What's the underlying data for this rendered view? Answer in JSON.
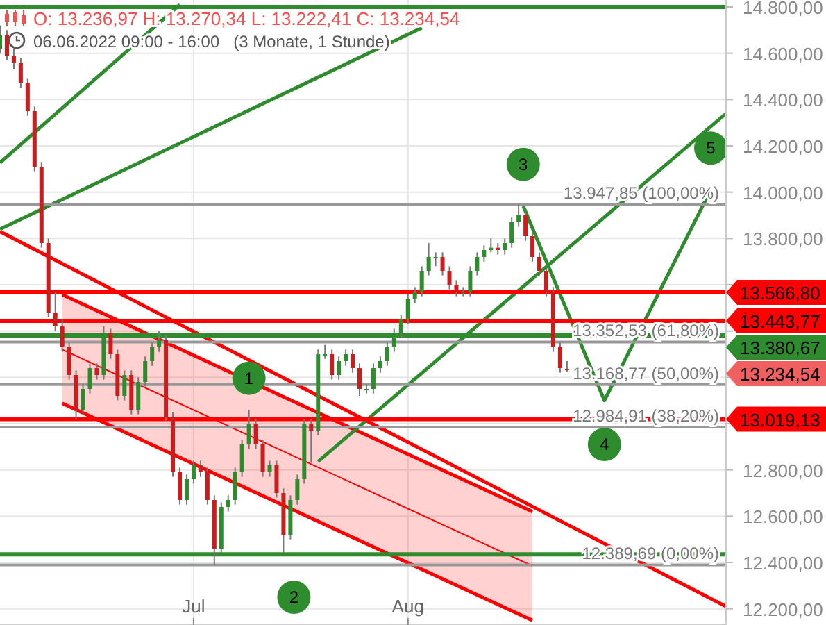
{
  "chart_data": {
    "type": "candlestick",
    "title": "O: 13.236,97  H: 13.270,34  L: 13.222,41  C: 13.234,54",
    "subtitle": "06.06.2022 09:00 - 16:00   (3 Monate, 1 Stunde)",
    "x": [
      "2022-06-03",
      "2022-06-04",
      "2022-06-05",
      "2022-06-06",
      "2022-06-07",
      "2022-06-08",
      "2022-06-09",
      "2022-06-10",
      "2022-06-11",
      "2022-06-12",
      "2022-06-13",
      "2022-06-14",
      "2022-06-15",
      "2022-06-16",
      "2022-06-17",
      "2022-06-18",
      "2022-06-19",
      "2022-06-20",
      "2022-06-21",
      "2022-06-22",
      "2022-06-23",
      "2022-06-24",
      "2022-06-25",
      "2022-06-26",
      "2022-06-27",
      "2022-06-28",
      "2022-06-29",
      "2022-06-30",
      "2022-07-01",
      "2022-07-02",
      "2022-07-03",
      "2022-07-04",
      "2022-07-05",
      "2022-07-06",
      "2022-07-07",
      "2022-07-08",
      "2022-07-09",
      "2022-07-10",
      "2022-07-11",
      "2022-07-12",
      "2022-07-13",
      "2022-07-14",
      "2022-07-15",
      "2022-07-16",
      "2022-07-17",
      "2022-07-18",
      "2022-07-19",
      "2022-07-20",
      "2022-07-21",
      "2022-07-22",
      "2022-07-23",
      "2022-07-24",
      "2022-07-25",
      "2022-07-26",
      "2022-07-27",
      "2022-07-28",
      "2022-07-29",
      "2022-07-30",
      "2022-07-31",
      "2022-08-01",
      "2022-08-02",
      "2022-08-03",
      "2022-08-04",
      "2022-08-05",
      "2022-08-06",
      "2022-08-07",
      "2022-08-08",
      "2022-08-09",
      "2022-08-10",
      "2022-08-11",
      "2022-08-12",
      "2022-08-13",
      "2022-08-14",
      "2022-08-15",
      "2022-08-16",
      "2022-08-17",
      "2022-08-18",
      "2022-08-19",
      "2022-08-20",
      "2022-08-21",
      "2022-08-22",
      "2022-08-23",
      "2022-08-24"
    ],
    "ohlc": [
      [
        14620,
        14720,
        14600,
        14680
      ],
      [
        14680,
        14700,
        14570,
        14590
      ],
      [
        14590,
        14620,
        14530,
        14560
      ],
      [
        14560,
        14580,
        14450,
        14470
      ],
      [
        14470,
        14490,
        14330,
        14350
      ],
      [
        14350,
        14370,
        14090,
        14110
      ],
      [
        14110,
        14130,
        13760,
        13780
      ],
      [
        13780,
        13800,
        13460,
        13480
      ],
      [
        13480,
        13570,
        13400,
        13420
      ],
      [
        13420,
        13450,
        13310,
        13330
      ],
      [
        13330,
        13350,
        13190,
        13210
      ],
      [
        13210,
        13230,
        13020,
        13060
      ],
      [
        13060,
        13170,
        13040,
        13150
      ],
      [
        13150,
        13260,
        13130,
        13240
      ],
      [
        13240,
        13260,
        13190,
        13210
      ],
      [
        13210,
        13420,
        13190,
        13390
      ],
      [
        13390,
        13410,
        13280,
        13300
      ],
      [
        13300,
        13320,
        13100,
        13120
      ],
      [
        13120,
        13230,
        13100,
        13210
      ],
      [
        13210,
        13230,
        13040,
        13060
      ],
      [
        13060,
        13200,
        13040,
        13180
      ],
      [
        13180,
        13290,
        13160,
        13270
      ],
      [
        13270,
        13350,
        13250,
        13330
      ],
      [
        13330,
        13400,
        13310,
        13360
      ],
      [
        13360,
        13380,
        13010,
        13030
      ],
      [
        13030,
        13050,
        12770,
        12790
      ],
      [
        12790,
        12810,
        12650,
        12670
      ],
      [
        12670,
        12780,
        12650,
        12760
      ],
      [
        12760,
        12840,
        12740,
        12820
      ],
      [
        12820,
        12840,
        12770,
        12790
      ],
      [
        12790,
        12810,
        12650,
        12670
      ],
      [
        12670,
        12690,
        12389.69,
        12460
      ],
      [
        12460,
        12660,
        12440,
        12640
      ],
      [
        12640,
        12690,
        12620,
        12670
      ],
      [
        12670,
        12810,
        12650,
        12790
      ],
      [
        12790,
        12930,
        12770,
        12910
      ],
      [
        12910,
        13060,
        12890,
        13000
      ],
      [
        13000,
        13020,
        12890,
        12910
      ],
      [
        12910,
        12930,
        12770,
        12790
      ],
      [
        12790,
        12840,
        12770,
        12820
      ],
      [
        12820,
        12840,
        12680,
        12700
      ],
      [
        12700,
        12720,
        12440,
        12520
      ],
      [
        12520,
        12690,
        12500,
        12670
      ],
      [
        12670,
        12780,
        12650,
        12760
      ],
      [
        12760,
        13020,
        12740,
        13000
      ],
      [
        13000,
        13020,
        12830,
        12970
      ],
      [
        12970,
        13320,
        12950,
        13300
      ],
      [
        13300,
        13340,
        13280,
        13300
      ],
      [
        13300,
        13320,
        13190,
        13210
      ],
      [
        13210,
        13290,
        13190,
        13270
      ],
      [
        13270,
        13320,
        13250,
        13300
      ],
      [
        13300,
        13320,
        13220,
        13240
      ],
      [
        13240,
        13260,
        13120,
        13150
      ],
      [
        13150,
        13170,
        13130,
        13150
      ],
      [
        13150,
        13260,
        13130,
        13240
      ],
      [
        13240,
        13290,
        13220,
        13270
      ],
      [
        13270,
        13350,
        13250,
        13330
      ],
      [
        13330,
        13410,
        13310,
        13390
      ],
      [
        13390,
        13470,
        13370,
        13450
      ],
      [
        13450,
        13560,
        13430,
        13540
      ],
      [
        13540,
        13590,
        13520,
        13570
      ],
      [
        13570,
        13680,
        13550,
        13660
      ],
      [
        13660,
        13780,
        13640,
        13720
      ],
      [
        13720,
        13740,
        13680,
        13720
      ],
      [
        13720,
        13740,
        13640,
        13660
      ],
      [
        13660,
        13680,
        13580,
        13600
      ],
      [
        13600,
        13620,
        13550,
        13570
      ],
      [
        13570,
        13590,
        13550,
        13570
      ],
      [
        13570,
        13680,
        13550,
        13660
      ],
      [
        13660,
        13740,
        13640,
        13720
      ],
      [
        13720,
        13770,
        13700,
        13750
      ],
      [
        13750,
        13800,
        13740,
        13760
      ],
      [
        13760,
        13780,
        13730,
        13750
      ],
      [
        13750,
        13800,
        13730,
        13780
      ],
      [
        13780,
        13890,
        13760,
        13870
      ],
      [
        13870,
        13947.85,
        13850,
        13900
      ],
      [
        13900,
        13920,
        13790,
        13810
      ],
      [
        13810,
        13830,
        13700,
        13720
      ],
      [
        13720,
        13740,
        13640,
        13660
      ],
      [
        13660,
        13680,
        13550,
        13570
      ],
      [
        13570,
        13590,
        13310,
        13330
      ],
      [
        13330,
        13350,
        13220,
        13240
      ],
      [
        13236.97,
        13270.34,
        13222.41,
        13234.54
      ]
    ],
    "series": [
      {
        "type": "line",
        "color": "#ff0000",
        "x": [
          "2022-06-12",
          "2022-08-19"
        ],
        "values": [
          13320,
          12385
        ],
        "lower": [
          13088,
          12150
        ],
        "upper": [
          13557,
          12620
        ]
      },
      {
        "type": "line",
        "color": "#ff0000",
        "x": [
          "2022-06-12",
          "2022-08-19"
        ],
        "values": [
          13088,
          12150
        ]
      },
      {
        "type": "line",
        "color": "#ff0000",
        "x": [
          "2022-06-12",
          "2022-08-19"
        ],
        "values": [
          13557,
          12620
        ]
      },
      {
        "type": "line",
        "color": "#ff0000",
        "x": [
          "2022-06-03",
          "2022-09-16"
        ],
        "values": [
          13830,
          12210
        ]
      },
      {
        "type": "line",
        "color": "#2e8b2e",
        "x": [
          "2022-06-03",
          "2022-08-03"
        ],
        "values": [
          13840,
          14710
        ]
      },
      {
        "type": "line",
        "color": "#2e8b2e",
        "x": [
          "2022-06-03",
          "2022-06-29"
        ],
        "values": [
          14127,
          14810
        ]
      },
      {
        "type": "line",
        "color": "#2e8b2e",
        "x": [
          "2022-07-19",
          "2022-09-16"
        ],
        "values": [
          12836,
          14340
        ]
      },
      {
        "type": "line",
        "color": "#2e8b2e",
        "x": [
          "2022-08-17T16:00",
          "2022-08-29T10:00",
          "2022-09-13T19:00"
        ],
        "values": [
          13940,
          13100,
          14010
        ]
      }
    ],
    "ref_lines": [
      {
        "axis": "y",
        "value": 14800,
        "color": "#2e8b2e"
      },
      {
        "axis": "y",
        "value": 12435,
        "color": "#2e8b2e"
      },
      {
        "axis": "y",
        "value": 13947.85,
        "label": "13.947,85 (100,00%)",
        "color": "#999999"
      },
      {
        "axis": "y",
        "value": 13352.53,
        "label": "13.352,53 (61,80%)",
        "color": "#999999"
      },
      {
        "axis": "y",
        "value": 13168.77,
        "label": "13.168,77 (50,00%)",
        "color": "#999999"
      },
      {
        "axis": "y",
        "value": 12984.91,
        "label": "12.984,91 (38,20%)",
        "color": "#999999"
      },
      {
        "axis": "y",
        "value": 12389.69,
        "label": "12.389,69 (0,00%)",
        "color": "#999999"
      },
      {
        "axis": "y",
        "value": 13566.8,
        "label": "13.566,80",
        "color": "#ff0000"
      },
      {
        "axis": "y",
        "value": 13443.77,
        "label": "13.443,77",
        "color": "#ff0000"
      },
      {
        "axis": "y",
        "value": 13380.67,
        "label": "13.380,67",
        "color": "#2e8b2e"
      },
      {
        "axis": "y",
        "value": 13019.13,
        "label": "13.019,13",
        "color": "#ff0000"
      }
    ],
    "annotations": [
      {
        "text": "1",
        "x": "2022-07-09",
        "y": 13196
      },
      {
        "text": "2",
        "x": "2022-07-15T12:00",
        "y": 12250
      },
      {
        "text": "3",
        "x": "2022-08-17T16:00",
        "y": 14120
      },
      {
        "text": "4",
        "x": "2022-08-29T10:00",
        "y": 12910
      },
      {
        "text": "5",
        "x": "2022-09-13T19:00",
        "y": 14190
      },
      "13.234,54"
    ],
    "xlim": [
      "2022-06-03",
      "2022-09-16"
    ],
    "xticks": [
      {
        "value": "2022-07-01",
        "label": "Jul"
      },
      {
        "value": "2022-08-01",
        "label": "Aug"
      }
    ],
    "ylim": [
      12130,
      14830
    ],
    "yticks": [
      {
        "value": 12200,
        "label": "12.200,00"
      },
      {
        "value": 12400,
        "label": "12.400,00"
      },
      {
        "value": 12600,
        "label": "12.600,00"
      },
      {
        "value": 12800,
        "label": "12.800,00"
      },
      {
        "value": 13000,
        "label": null
      },
      {
        "value": 13200,
        "label": null
      },
      {
        "value": 13400,
        "label": null
      },
      {
        "value": 13600,
        "label": null
      },
      {
        "value": 13800,
        "label": "13.800,00"
      },
      {
        "value": 14000,
        "label": "14.000,00"
      },
      {
        "value": 14200,
        "label": "14.200,00"
      },
      {
        "value": 14400,
        "label": "14.400,00"
      },
      {
        "value": 14600,
        "label": "14.600,00"
      },
      {
        "value": 14800,
        "label": "14.800,00"
      }
    ],
    "grid": true
  }
}
